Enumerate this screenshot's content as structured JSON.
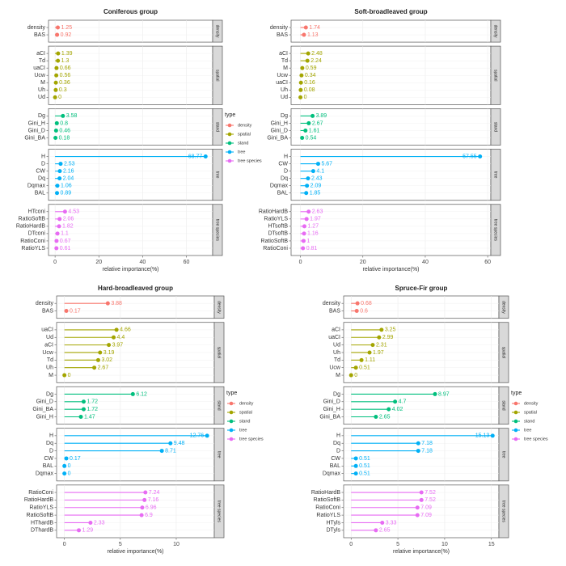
{
  "colors": {
    "density": "#F8766D",
    "spatial": "#A3A500",
    "stand": "#00BF7D",
    "tree": "#00B0F6",
    "tree species": "#E76BF3"
  },
  "legend": {
    "title": "type",
    "entries": [
      "density",
      "spatial",
      "stand",
      "tree",
      "tree species"
    ]
  },
  "chart_data": [
    {
      "type": "lollipop",
      "title": "Coniferous group",
      "xlabel": "relative importance(%)",
      "xlim": [
        -3,
        72
      ],
      "xticks": [
        0,
        20,
        40,
        60
      ],
      "groups": [
        {
          "name": "density",
          "items": [
            {
              "label": "density",
              "value": 1.25
            },
            {
              "label": "BAS",
              "value": 0.92
            }
          ]
        },
        {
          "name": "spatial",
          "items": [
            {
              "label": "aCI",
              "value": 1.39
            },
            {
              "label": "Td",
              "value": 1.3
            },
            {
              "label": "uaCI",
              "value": 0.66
            },
            {
              "label": "Ucw",
              "value": 0.56
            },
            {
              "label": "M",
              "value": 0.36
            },
            {
              "label": "Uh",
              "value": 0.3
            },
            {
              "label": "Ud",
              "value": 0
            }
          ]
        },
        {
          "name": "stand",
          "items": [
            {
              "label": "Dg",
              "value": 3.58
            },
            {
              "label": "Gini_H",
              "value": 0.8
            },
            {
              "label": "Gini_D",
              "value": 0.46
            },
            {
              "label": "Gini_BA",
              "value": 0.18
            }
          ]
        },
        {
          "name": "tree",
          "items": [
            {
              "label": "H",
              "value": 68.77
            },
            {
              "label": "D",
              "value": 2.53
            },
            {
              "label": "CW",
              "value": 2.16
            },
            {
              "label": "Dq",
              "value": 2.04
            },
            {
              "label": "Dqmax",
              "value": 1.06
            },
            {
              "label": "BAL",
              "value": 0.89
            }
          ]
        },
        {
          "name": "tree species",
          "items": [
            {
              "label": "HTconi",
              "value": 4.53
            },
            {
              "label": "RatioSoftB",
              "value": 2.06
            },
            {
              "label": "RatioHardB",
              "value": 1.82
            },
            {
              "label": "DTconi",
              "value": 1.1
            },
            {
              "label": "RatioConi",
              "value": 0.67
            },
            {
              "label": "RatioYLS",
              "value": 0.61
            }
          ]
        }
      ]
    },
    {
      "type": "lollipop",
      "title": "Soft-broadleaved group",
      "xlabel": "relative importance(%)",
      "xlim": [
        -3,
        61
      ],
      "xticks": [
        0,
        20,
        40,
        60
      ],
      "groups": [
        {
          "name": "density",
          "items": [
            {
              "label": "density",
              "value": 1.74
            },
            {
              "label": "BAS",
              "value": 1.13
            }
          ]
        },
        {
          "name": "spatial",
          "items": [
            {
              "label": "aCI",
              "value": 2.48
            },
            {
              "label": "Td",
              "value": 2.24
            },
            {
              "label": "M",
              "value": 0.59
            },
            {
              "label": "Ucw",
              "value": 0.34
            },
            {
              "label": "uaCI",
              "value": 0.16
            },
            {
              "label": "Uh",
              "value": 0.08
            },
            {
              "label": "Ud",
              "value": 0
            }
          ]
        },
        {
          "name": "stand",
          "items": [
            {
              "label": "Dg",
              "value": 3.89
            },
            {
              "label": "Gini_H",
              "value": 2.67
            },
            {
              "label": "Gini_D",
              "value": 1.61
            },
            {
              "label": "Gini_BA",
              "value": 0.54
            }
          ]
        },
        {
          "name": "tree",
          "items": [
            {
              "label": "H",
              "value": 57.55
            },
            {
              "label": "CW",
              "value": 5.67
            },
            {
              "label": "D",
              "value": 4.1
            },
            {
              "label": "Dq",
              "value": 2.43
            },
            {
              "label": "Dqmax",
              "value": 2.09
            },
            {
              "label": "BAL",
              "value": 1.85
            }
          ]
        },
        {
          "name": "tree species",
          "items": [
            {
              "label": "RatioHardB",
              "value": 2.63
            },
            {
              "label": "RatioYLS",
              "value": 1.97
            },
            {
              "label": "HTsoftB",
              "value": 1.27
            },
            {
              "label": "DTsoftB",
              "value": 1.16
            },
            {
              "label": "RatioSoftB",
              "value": 1
            },
            {
              "label": "RatioConi",
              "value": 0.81
            }
          ]
        }
      ]
    },
    {
      "type": "lollipop",
      "title": "Hard-broadleaved group",
      "xlabel": "relative importance(%)",
      "xlim": [
        -0.7,
        13.4
      ],
      "xticks": [
        0,
        5,
        10
      ],
      "groups": [
        {
          "name": "density",
          "items": [
            {
              "label": "density",
              "value": 3.88
            },
            {
              "label": "BAS",
              "value": 0.17
            }
          ]
        },
        {
          "name": "spatial",
          "items": [
            {
              "label": "uaCI",
              "value": 4.66
            },
            {
              "label": "Ud",
              "value": 4.4
            },
            {
              "label": "aCI",
              "value": 3.97
            },
            {
              "label": "Ucw",
              "value": 3.19
            },
            {
              "label": "Td",
              "value": 3.02
            },
            {
              "label": "Uh",
              "value": 2.67
            },
            {
              "label": "M",
              "value": 0
            }
          ]
        },
        {
          "name": "stand",
          "items": [
            {
              "label": "Dg",
              "value": 6.12
            },
            {
              "label": "Gini_D",
              "value": 1.72
            },
            {
              "label": "Gini_BA",
              "value": 1.72
            },
            {
              "label": "Gini_H",
              "value": 1.47
            }
          ]
        },
        {
          "name": "tree",
          "items": [
            {
              "label": "H",
              "value": 12.76
            },
            {
              "label": "Dq",
              "value": 9.48
            },
            {
              "label": "D",
              "value": 8.71
            },
            {
              "label": "CW",
              "value": 0.17
            },
            {
              "label": "BAL",
              "value": 0
            },
            {
              "label": "Dqmax",
              "value": 0
            }
          ]
        },
        {
          "name": "tree species",
          "items": [
            {
              "label": "RatioConi",
              "value": 7.24
            },
            {
              "label": "RatioHardB",
              "value": 7.16
            },
            {
              "label": "RatioYLS",
              "value": 6.96
            },
            {
              "label": "RatioSoftB",
              "value": 6.9
            },
            {
              "label": "HThardB",
              "value": 2.33
            },
            {
              "label": "DThardB",
              "value": 1.29
            }
          ]
        }
      ]
    },
    {
      "type": "lollipop",
      "title": "Spruce-Fir group",
      "xlabel": "relative importance(%)",
      "xlim": [
        -0.8,
        15.8
      ],
      "xticks": [
        0,
        5,
        10,
        15
      ],
      "groups": [
        {
          "name": "density",
          "items": [
            {
              "label": "density",
              "value": 0.68
            },
            {
              "label": "BAS",
              "value": 0.6
            }
          ]
        },
        {
          "name": "spatial",
          "items": [
            {
              "label": "aCI",
              "value": 3.25
            },
            {
              "label": "uaCI",
              "value": 2.99
            },
            {
              "label": "Ud",
              "value": 2.31
            },
            {
              "label": "Uh",
              "value": 1.97
            },
            {
              "label": "Td",
              "value": 1.11
            },
            {
              "label": "Ucw",
              "value": 0.51
            },
            {
              "label": "M",
              "value": 0
            }
          ]
        },
        {
          "name": "stand",
          "items": [
            {
              "label": "Dg",
              "value": 8.97
            },
            {
              "label": "Gini_D",
              "value": 4.7
            },
            {
              "label": "Gini_H",
              "value": 4.02
            },
            {
              "label": "Gini_BA",
              "value": 2.65
            }
          ]
        },
        {
          "name": "tree",
          "items": [
            {
              "label": "H",
              "value": 15.13
            },
            {
              "label": "Dq",
              "value": 7.18
            },
            {
              "label": "D",
              "value": 7.18
            },
            {
              "label": "CW",
              "value": 0.51
            },
            {
              "label": "BAL",
              "value": 0.51
            },
            {
              "label": "Dqmax",
              "value": 0.51
            }
          ]
        },
        {
          "name": "tree species",
          "items": [
            {
              "label": "RatioHardB",
              "value": 7.52
            },
            {
              "label": "RatioSoftB",
              "value": 7.52
            },
            {
              "label": "RatioConi",
              "value": 7.09
            },
            {
              "label": "RatioYLS",
              "value": 7.09
            },
            {
              "label": "HTyls",
              "value": 3.33
            },
            {
              "label": "DTyls",
              "value": 2.65
            }
          ]
        }
      ]
    }
  ]
}
